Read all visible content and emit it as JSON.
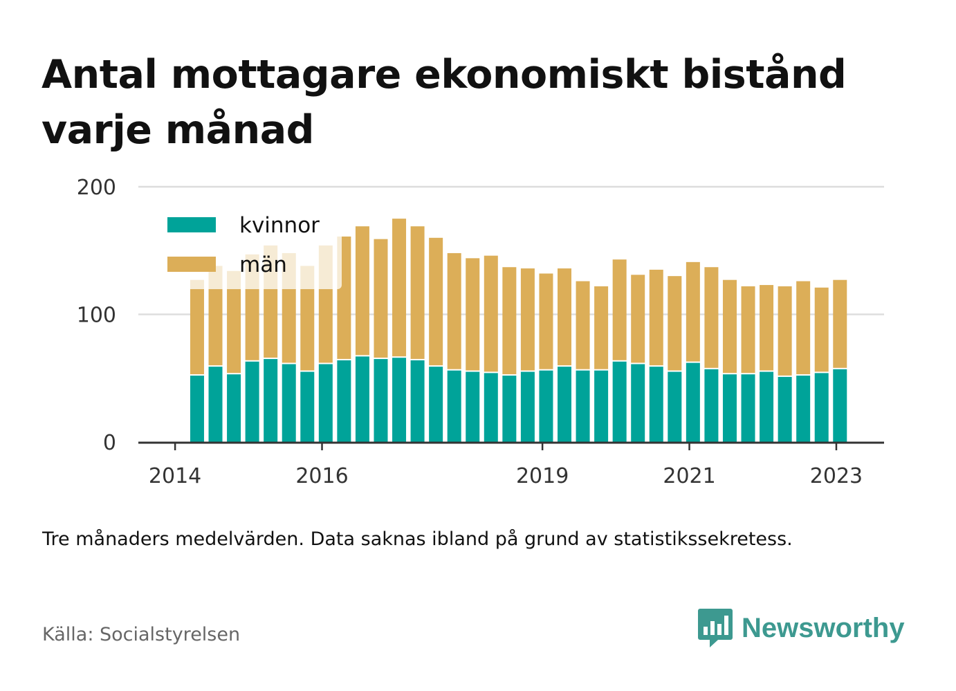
{
  "title": "Antal mottagare ekonomiskt bistånd varje månad",
  "note": "Tre månaders medelvärden. Data saknas ibland på grund av statistikssekretess.",
  "source": "Källa: Socialstyrelsen",
  "brand": {
    "name": "Newsworthy",
    "icon": "bar-chart-speech-bubble-icon",
    "color": "#3d9990"
  },
  "colors": {
    "kvinnor": "#00a399",
    "man": "#dcae58",
    "grid": "#dddddd",
    "axis": "#333333"
  },
  "chart_data": {
    "type": "bar",
    "stacked": true,
    "title": "Antal mottagare ekonomiskt bistånd varje månad",
    "xlabel": "",
    "ylabel": "",
    "ylim": [
      0,
      200
    ],
    "yticks": [
      0,
      100,
      200
    ],
    "xticks": [
      {
        "label": "2014",
        "x": 2014.0
      },
      {
        "label": "2016",
        "x": 2016.0
      },
      {
        "label": "2019",
        "x": 2019.0
      },
      {
        "label": "2021",
        "x": 2021.0
      },
      {
        "label": "2023",
        "x": 2023.0
      }
    ],
    "x_range": [
      2013.5,
      2023.65
    ],
    "grid": true,
    "legend_position": "top-left",
    "x": [
      2014.3,
      2014.55,
      2014.8,
      2015.05,
      2015.3,
      2015.55,
      2015.8,
      2016.05,
      2016.3,
      2016.55,
      2016.8,
      2017.05,
      2017.3,
      2017.55,
      2017.8,
      2018.05,
      2018.3,
      2018.55,
      2018.8,
      2019.05,
      2019.3,
      2019.55,
      2019.8,
      2020.05,
      2020.3,
      2020.55,
      2020.8,
      2021.05,
      2021.3,
      2021.55,
      2021.8,
      2022.05,
      2022.3,
      2022.55,
      2022.8,
      2023.05
    ],
    "series": [
      {
        "name": "kvinnor",
        "values": [
          52,
          59,
          53,
          63,
          65,
          61,
          55,
          61,
          64,
          67,
          65,
          66,
          64,
          59,
          56,
          55,
          54,
          52,
          55,
          56,
          59,
          56,
          56,
          63,
          61,
          59,
          55,
          62,
          57,
          53,
          53,
          55,
          51,
          52,
          54,
          57
        ]
      },
      {
        "name": "män",
        "values": [
          75,
          79,
          81,
          84,
          89,
          87,
          83,
          93,
          97,
          102,
          94,
          109,
          105,
          101,
          92,
          89,
          92,
          85,
          81,
          76,
          77,
          70,
          66,
          80,
          70,
          76,
          75,
          79,
          80,
          74,
          69,
          68,
          71,
          74,
          67,
          70
        ]
      }
    ]
  }
}
